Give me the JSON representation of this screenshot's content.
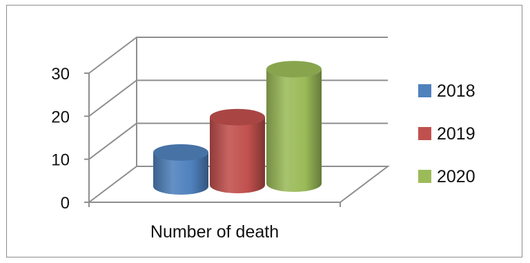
{
  "chart_data": {
    "type": "bar",
    "style": "3d-cylinder",
    "categories": [
      "Number of death"
    ],
    "series": [
      {
        "name": "2018",
        "values": [
          8
        ],
        "color": "#4f81bd"
      },
      {
        "name": "2019",
        "values": [
          16
        ],
        "color": "#c0504d"
      },
      {
        "name": "2020",
        "values": [
          27
        ],
        "color": "#9bbb59"
      }
    ],
    "ylim": [
      0,
      30
    ],
    "yticks": [
      "0",
      "10",
      "20",
      "30"
    ],
    "grid": true,
    "legend": "right"
  }
}
